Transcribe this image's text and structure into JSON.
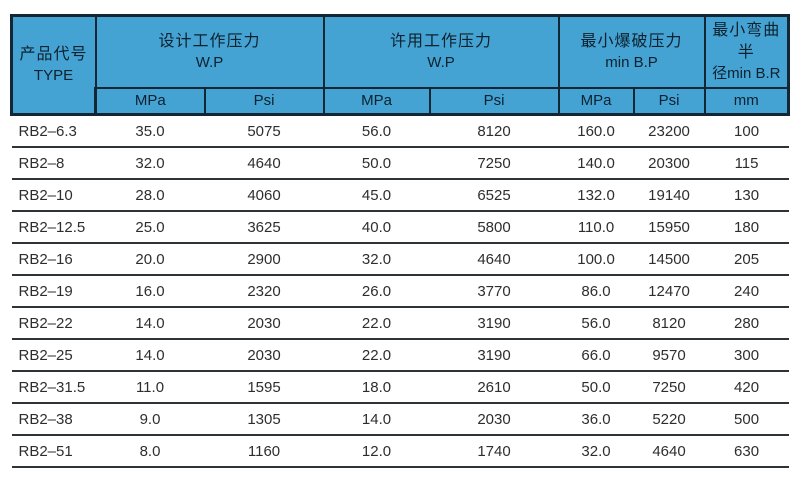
{
  "table": {
    "header": {
      "type": {
        "cn": "产品代号",
        "en": "TYPE"
      },
      "groups": [
        {
          "cn": "设计工作压力",
          "en": "W.P"
        },
        {
          "cn": "许用工作压力",
          "en": "W.P"
        },
        {
          "cn": "最小爆破压力",
          "en": "min B.P"
        },
        {
          "cn": "最小弯曲半",
          "en": "径min B.R"
        }
      ],
      "units": [
        "MPa",
        "Psi",
        "MPa",
        "Psi",
        "MPa",
        "Psi",
        "mm"
      ]
    },
    "rows": [
      [
        "RB2–6.3",
        "35.0",
        "5075",
        "56.0",
        "8120",
        "160.0",
        "23200",
        "100"
      ],
      [
        "RB2–8",
        "32.0",
        "4640",
        "50.0",
        "7250",
        "140.0",
        "20300",
        "115"
      ],
      [
        "RB2–10",
        "28.0",
        "4060",
        "45.0",
        "6525",
        "132.0",
        "19140",
        "130"
      ],
      [
        "RB2–12.5",
        "25.0",
        "3625",
        "40.0",
        "5800",
        "110.0",
        "15950",
        "180"
      ],
      [
        "RB2–16",
        "20.0",
        "2900",
        "32.0",
        "4640",
        "100.0",
        "14500",
        "205"
      ],
      [
        "RB2–19",
        "16.0",
        "2320",
        "26.0",
        "3770",
        "86.0",
        "12470",
        "240"
      ],
      [
        "RB2–22",
        "14.0",
        "2030",
        "22.0",
        "3190",
        "56.0",
        "8120",
        "280"
      ],
      [
        "RB2–25",
        "14.0",
        "2030",
        "22.0",
        "3190",
        "66.0",
        "9570",
        "300"
      ],
      [
        "RB2–31.5",
        "11.0",
        "1595",
        "18.0",
        "2610",
        "50.0",
        "7250",
        "420"
      ],
      [
        "RB2–38",
        "9.0",
        "1305",
        "14.0",
        "2030",
        "36.0",
        "5220",
        "500"
      ],
      [
        "RB2–51",
        "8.0",
        "1160",
        "12.0",
        "1740",
        "32.0",
        "4640",
        "630"
      ]
    ]
  },
  "colors": {
    "header_background": "#44a3d3",
    "header_border": "#122733",
    "header_text": "#0d212e",
    "row_separator": "#2d3338",
    "data_text": "#2e2e2e",
    "page_background": "#ffffff"
  }
}
